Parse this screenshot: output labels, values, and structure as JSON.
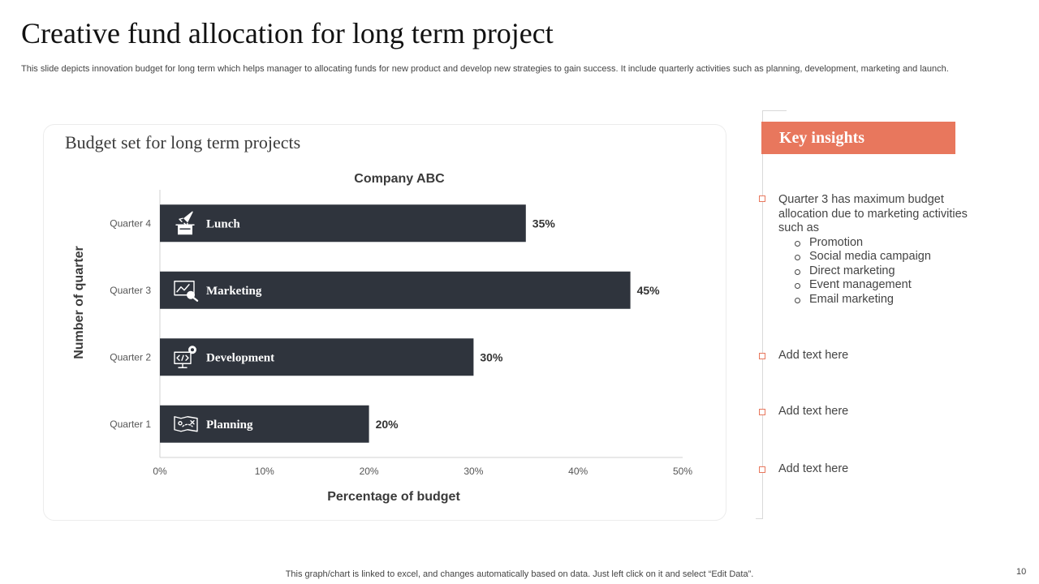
{
  "slide": {
    "title": "Creative fund allocation for long term project",
    "subtitle": "This slide depicts innovation budget for long term which helps manager to allocating funds for new product and develop new strategies to gain success. It include quarterly activities such as planning, development, marketing and launch.",
    "footer_note": "This graph/chart is linked to excel,  and changes automatically based on data. Just left click on it and select “Edit Data”.",
    "page_number": "10"
  },
  "chart_card": {
    "heading": "Budget set for long term projects"
  },
  "chart_data": {
    "type": "bar",
    "orientation": "horizontal",
    "title": "Company ABC",
    "xlabel": "Percentage of budget",
    "ylabel": "Number of quarter",
    "categories": [
      "Quarter 4",
      "Quarter 3",
      "Quarter 2",
      "Quarter 1"
    ],
    "values": [
      35,
      45,
      30,
      20
    ],
    "value_labels": [
      "35%",
      "45%",
      "30%",
      "20%"
    ],
    "bar_labels": [
      "Lunch",
      "Marketing",
      "Development",
      "Planning"
    ],
    "bar_icons": [
      "rocket-launch-icon",
      "marketing-chart-icon",
      "code-gear-icon",
      "planning-map-icon"
    ],
    "xlim": [
      0,
      50
    ],
    "xticks": [
      "0%",
      "10%",
      "20%",
      "30%",
      "40%",
      "50%"
    ],
    "bar_color": "#2f343d",
    "grid": false,
    "legend": "none"
  },
  "insights": {
    "header": "Key insights",
    "accent_color": "#e8775d",
    "items": [
      {
        "text": "Quarter 3 has maximum budget allocation due to marketing activities such as",
        "sub_items": [
          "Promotion",
          "Social media campaign",
          "Direct marketing",
          "Event management",
          "Email marketing"
        ]
      },
      {
        "text": "Add text here"
      },
      {
        "text": "Add text here"
      },
      {
        "text": "Add text here"
      }
    ]
  }
}
